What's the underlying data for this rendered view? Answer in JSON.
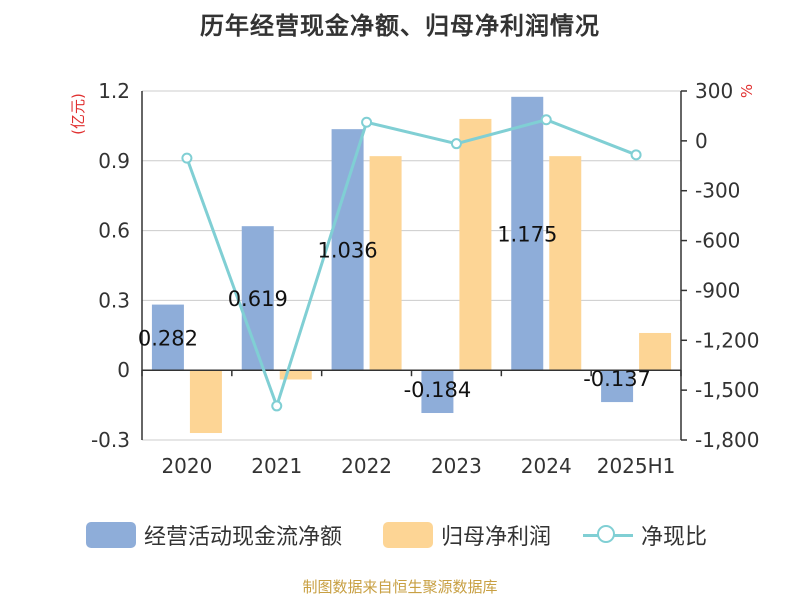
{
  "chart_data": {
    "type": "bar",
    "title": "历年经营现金净额、归母净利润情况",
    "categories": [
      "2020",
      "2021",
      "2022",
      "2023",
      "2024",
      "2025H1"
    ],
    "series": [
      {
        "name": "经营活动现金流净额",
        "type": "bar",
        "axis": "left",
        "color": "#8eadd9",
        "values": [
          0.282,
          0.619,
          1.036,
          -0.184,
          1.175,
          -0.137
        ],
        "labels": [
          "0.282",
          "0.619",
          "1.036",
          "-0.184",
          "1.175",
          "-0.137"
        ]
      },
      {
        "name": "归母净利润",
        "type": "bar",
        "axis": "left",
        "color": "#fdd595",
        "values": [
          -0.27,
          -0.04,
          0.92,
          1.08,
          0.92,
          0.16
        ]
      },
      {
        "name": "净现比",
        "type": "line",
        "axis": "right",
        "color": "#80cfd4",
        "values": [
          -104,
          -1595,
          112,
          -17,
          127,
          -84
        ]
      }
    ],
    "y_left": {
      "unit": "(亿元)",
      "ylim": [
        -0.3,
        1.2
      ],
      "ticks": [
        "-0.3",
        "0",
        "0.3",
        "0.6",
        "0.9",
        "1.2"
      ]
    },
    "y_right": {
      "unit": "%",
      "ylim": [
        -1800,
        300
      ],
      "ticks": [
        "-1,800",
        "-1,500",
        "-1,200",
        "-900",
        "-600",
        "-300",
        "0",
        "300"
      ]
    },
    "grid": true,
    "legend_position": "bottom"
  },
  "source": "制图数据来自恒生聚源数据库"
}
